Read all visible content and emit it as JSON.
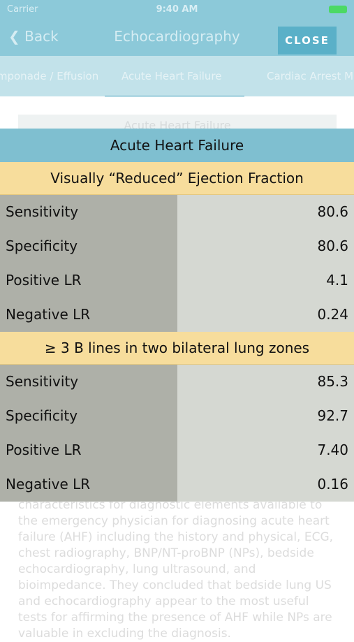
{
  "status": {
    "carrier": "Carrier",
    "time": "9:40 AM"
  },
  "nav": {
    "back_label": "Back",
    "title": "Echocardiography",
    "close_label": "CLOSE"
  },
  "tabs": [
    {
      "label": "Tamponade / Effusion"
    },
    {
      "label": "Acute Heart Failure"
    },
    {
      "label": "Cardiac Arrest M"
    }
  ],
  "background": {
    "section_heading": "Acute Heart Failure",
    "body_text": "characteristics for diagnostic elements available to the emergency physician for diagnosing acute heart failure (AHF) including the history and physical, ECG, chest radiography, BNP/NT-proBNP (NPs), bedside echocardiography, lung ultrasound, and bioimpedance. They concluded that bedside lung US and echocardiography appear to the most useful tests for affirming the presence of AHF while NPs are valuable in excluding the diagnosis."
  },
  "card": {
    "title": "Acute Heart Failure",
    "sections": [
      {
        "heading": "Visually “Reduced” Ejection Fraction",
        "rows": [
          {
            "label": "Sensitivity",
            "value": "80.6"
          },
          {
            "label": "Specificity",
            "value": "80.6"
          },
          {
            "label": "Positive LR",
            "value": "4.1"
          },
          {
            "label": "Negative LR",
            "value": "0.24"
          }
        ]
      },
      {
        "heading": "≥ 3 B lines in two bilateral lung zones",
        "rows": [
          {
            "label": "Sensitivity",
            "value": "85.3"
          },
          {
            "label": "Specificity",
            "value": "92.7"
          },
          {
            "label": "Positive LR",
            "value": "7.40"
          },
          {
            "label": "Negative LR",
            "value": "0.16"
          }
        ]
      }
    ]
  },
  "colors": {
    "header": "#7fbfd0",
    "section_band": "#f7dd9c",
    "label_cell": "#aeb0a8",
    "value_cell": "#d5d8d2",
    "close_button": "#5ab0c8"
  }
}
